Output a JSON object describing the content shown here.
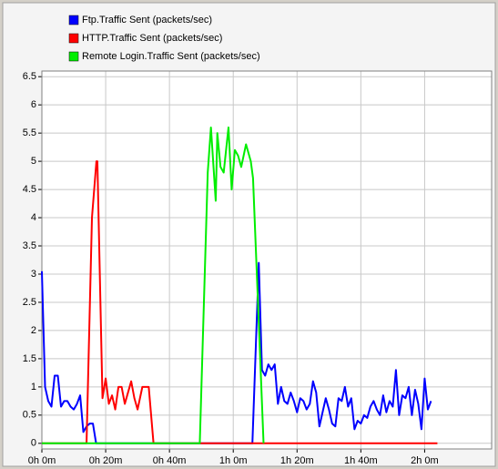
{
  "chart_data": {
    "type": "line",
    "xlim": [
      0,
      141
    ],
    "ylim": [
      -0.1,
      6.6
    ],
    "xticks": [
      {
        "value": 0,
        "label": "0h 0m"
      },
      {
        "value": 20,
        "label": "0h 20m"
      },
      {
        "value": 40,
        "label": "0h 40m"
      },
      {
        "value": 60,
        "label": "1h 0m"
      },
      {
        "value": 80,
        "label": "1h 20m"
      },
      {
        "value": 100,
        "label": "1h 40m"
      },
      {
        "value": 120,
        "label": "2h 0m"
      }
    ],
    "yticks": [
      0,
      0.5,
      1,
      1.5,
      2,
      2.5,
      3,
      3.5,
      4,
      4.5,
      5,
      5.5,
      6,
      6.5
    ],
    "grid": true,
    "series": [
      {
        "name": "Ftp.Traffic Sent (packets/sec)",
        "color": "#0000ff",
        "x": [
          0,
          1,
          2,
          3,
          4,
          5,
          6,
          7,
          8,
          9,
          10,
          11,
          12,
          13,
          14,
          15,
          16,
          17,
          66,
          68,
          69,
          70,
          71,
          72,
          73,
          74,
          75,
          76,
          77,
          78,
          79,
          80,
          81,
          82,
          83,
          84,
          85,
          86,
          87,
          88,
          89,
          90,
          91,
          92,
          93,
          94,
          95,
          96,
          97,
          98,
          99,
          100,
          101,
          102,
          103,
          104,
          105,
          106,
          107,
          108,
          109,
          110,
          111,
          112,
          113,
          114,
          115,
          116,
          117,
          118,
          119,
          120,
          121,
          122
        ],
        "values": [
          3.05,
          1.0,
          0.75,
          0.65,
          1.2,
          1.2,
          0.65,
          0.75,
          0.75,
          0.65,
          0.6,
          0.7,
          0.85,
          0.2,
          0.3,
          0.35,
          0.35,
          0,
          0,
          3.2,
          1.3,
          1.2,
          1.4,
          1.3,
          1.4,
          0.7,
          1.0,
          0.75,
          0.7,
          0.9,
          0.75,
          0.55,
          0.8,
          0.75,
          0.6,
          0.7,
          1.1,
          0.9,
          0.3,
          0.55,
          0.8,
          0.6,
          0.35,
          0.3,
          0.8,
          0.75,
          1.0,
          0.65,
          0.8,
          0.25,
          0.4,
          0.35,
          0.5,
          0.45,
          0.65,
          0.75,
          0.6,
          0.5,
          0.85,
          0.55,
          0.75,
          0.65,
          1.3,
          0.5,
          0.85,
          0.8,
          1.0,
          0.5,
          0.95,
          0.7,
          0.25,
          1.15,
          0.6,
          0.75
        ]
      },
      {
        "name": "HTTP.Traffic Sent (packets/sec)",
        "color": "#ff0000",
        "x": [
          0,
          14,
          15.7,
          17.1,
          17.4,
          19,
          20,
          21,
          22,
          23,
          24,
          25,
          26,
          28,
          29,
          30,
          31.5,
          33.5,
          35,
          124
        ],
        "values": [
          0,
          0,
          4.0,
          5.0,
          5.0,
          0.8,
          1.15,
          0.7,
          0.85,
          0.6,
          1.0,
          1.0,
          0.7,
          1.1,
          0.8,
          0.6,
          1.0,
          1.0,
          0,
          0
        ]
      },
      {
        "name": "Remote Login.Traffic Sent (packets/sec)",
        "color": "#00ee00",
        "x": [
          0,
          49.5,
          52,
          53,
          54.5,
          55,
          56,
          57,
          58.5,
          59.5,
          60.5,
          61.5,
          62.5,
          64,
          65.5,
          66.2,
          69.5
        ],
        "values": [
          0,
          0,
          4.8,
          5.6,
          4.3,
          5.5,
          4.9,
          4.8,
          5.6,
          4.5,
          5.2,
          5.1,
          4.9,
          5.3,
          5.0,
          4.7,
          0
        ]
      }
    ]
  }
}
